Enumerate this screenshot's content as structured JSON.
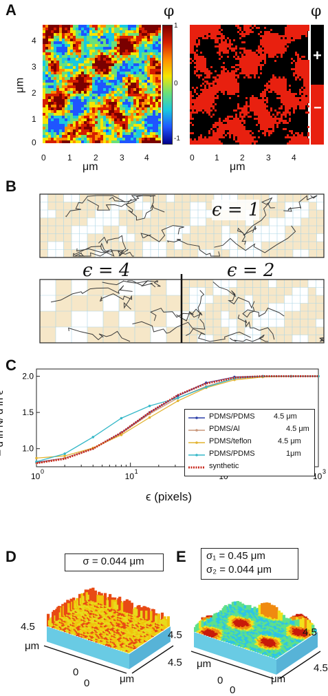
{
  "panel_a": {
    "label": "A",
    "phi": "φ",
    "phi2": "φ",
    "colorbar_ticks": [
      "1",
      "0",
      "-1"
    ],
    "y_ticks": [
      "4",
      "3",
      "2",
      "1",
      "0"
    ],
    "x_ticks_left": [
      "0",
      "1",
      "2",
      "3",
      "4"
    ],
    "x_ticks_right": [
      "0",
      "1",
      "2",
      "3",
      "4"
    ],
    "ylabel": "μm",
    "xlabel_left": "μm",
    "xlabel_right": "μm",
    "plus": "+",
    "minus": "−",
    "colors": {
      "pos": "#e8200f",
      "neg": "#000000"
    }
  },
  "panel_b": {
    "label": "B",
    "eps1": "ϵ = 1",
    "eps4": "ϵ = 4",
    "eps2": "ϵ = 2",
    "colors": {
      "fill": "#f6e7c8",
      "grid": "#a9d6e6"
    }
  },
  "panel_c": {
    "label": "C",
    "ylabel": "– d ln N/ d ln ϵ",
    "xlabel": "ϵ  (pixels)",
    "y_ticks": [
      "2.0",
      "1.5",
      "1.0"
    ],
    "x_ticks": [
      "10",
      "10",
      "10",
      "10"
    ],
    "x_ticks_exp": [
      "0",
      "1",
      "2",
      "3"
    ],
    "legend": [
      {
        "name": "PDMS/PDMS",
        "size": "4.5 μm",
        "color": "#2b3fa8"
      },
      {
        "name": "PDMS/Al",
        "size": "4.5 μm",
        "color": "#c9967a"
      },
      {
        "name": "PDMS/teflon",
        "size": "4.5 μm",
        "color": "#e2b32f"
      },
      {
        "name": "PDMS/PDMS",
        "size": "1μm",
        "color": "#35b8c8"
      },
      {
        "name": "synthetic",
        "size": "",
        "color": "#c8281e"
      }
    ]
  },
  "chart_data": {
    "type": "line",
    "xlabel": "ϵ  (pixels)",
    "ylabel": "– d ln N/ d ln ϵ",
    "xscale": "log",
    "xlim": [
      1,
      1000
    ],
    "ylim": [
      0.75,
      2.1
    ],
    "grid": false,
    "legend_position": "bottom-right",
    "series": [
      {
        "name": "PDMS/PDMS 4.5 μm",
        "x": [
          1,
          2,
          4,
          8,
          16,
          32,
          64,
          128,
          256,
          512,
          1000
        ],
        "y": [
          0.81,
          0.87,
          1.0,
          1.22,
          1.5,
          1.73,
          1.91,
          1.99,
          2.0,
          2.0,
          2.0
        ]
      },
      {
        "name": "PDMS/Al 4.5 μm",
        "x": [
          1,
          2,
          4,
          8,
          16,
          32,
          64,
          128,
          256,
          512,
          1000
        ],
        "y": [
          0.8,
          0.87,
          1.0,
          1.21,
          1.48,
          1.7,
          1.86,
          1.97,
          2.0,
          2.0,
          2.0
        ]
      },
      {
        "name": "PDMS/teflon 4.5 μm",
        "x": [
          1,
          2,
          4,
          8,
          16,
          32,
          64,
          128,
          256,
          512,
          1000
        ],
        "y": [
          0.87,
          0.9,
          1.01,
          1.19,
          1.43,
          1.66,
          1.84,
          1.95,
          1.99,
          2.0,
          2.0
        ]
      },
      {
        "name": "PDMS/PDMS 1μm",
        "x": [
          1,
          2,
          4,
          8,
          16,
          32,
          64,
          128,
          256,
          512,
          1000
        ],
        "y": [
          0.82,
          0.93,
          1.16,
          1.42,
          1.59,
          1.7,
          1.85,
          1.97,
          2.0,
          2.0,
          2.0
        ]
      },
      {
        "name": "synthetic",
        "x": [
          1,
          2,
          4,
          8,
          16,
          32,
          64,
          128,
          256,
          512,
          1000
        ],
        "y": [
          0.8,
          0.86,
          1.0,
          1.22,
          1.5,
          1.74,
          1.9,
          1.98,
          2.0,
          2.0,
          2.0
        ]
      }
    ]
  },
  "panel_d": {
    "label": "D",
    "sigma": "σ = 0.044 μm",
    "axis_left": "4.5",
    "axis_right": "4.5",
    "zero1": "0",
    "zero2": "0",
    "unit_left": "μm",
    "unit_right": "μm"
  },
  "panel_e": {
    "label": "E",
    "sigma1": "σ₁ = 0.45  μm",
    "sigma2": "σ₂ = 0.044 μm",
    "axis_left": "4.5",
    "axis_right": "4.5",
    "zero1": "0",
    "zero2": "0",
    "unit_left": "μm",
    "unit_right": "μm"
  }
}
